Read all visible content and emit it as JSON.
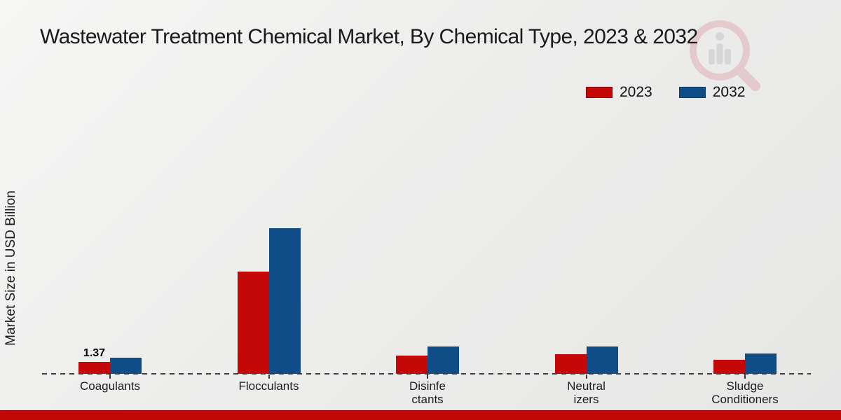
{
  "title": "Wastewater Treatment Chemical Market, By Chemical Type, 2023 & 2032",
  "ylabel": "Market Size in USD Billion",
  "legend": {
    "position": "top-right",
    "items": [
      {
        "label": "2023",
        "color": "#c40808"
      },
      {
        "label": "2032",
        "color": "#0f4c88"
      }
    ]
  },
  "colors": {
    "series_2023": "#c40808",
    "series_2032": "#0f4c88",
    "footer_accent": "#c40709",
    "dashed_zero_line": "#3c3c3c",
    "background": "#ededec",
    "watermark_ring": "#dfaab0",
    "watermark_bars": "#bfc3c8"
  },
  "chart_data": {
    "type": "bar",
    "title": "Wastewater Treatment Chemical Market, By Chemical Type, 2023 & 2032",
    "xlabel": "",
    "ylabel": "Market Size in USD Billion",
    "categories": [
      "Coagulants",
      "Flocculants",
      "Disinfectants",
      "Neutralizers",
      "Sludge Conditioners"
    ],
    "category_display": [
      [
        "Coagulants"
      ],
      [
        "Flocculants"
      ],
      [
        "Disinfe",
        "ctants"
      ],
      [
        "Neutral",
        "izers"
      ],
      [
        "Sludge",
        "Conditioners"
      ]
    ],
    "series": [
      {
        "name": "2023",
        "color": "#c40808",
        "values": [
          1.37,
          11.7,
          2.1,
          2.2,
          1.6
        ]
      },
      {
        "name": "2032",
        "color": "#0f4c88",
        "values": [
          1.85,
          16.6,
          3.1,
          3.15,
          2.3
        ]
      }
    ],
    "data_labels": [
      {
        "category": "Coagulants",
        "series": "2023",
        "text": "1.37"
      }
    ],
    "ylim": [
      0,
      18
    ],
    "grid": false,
    "zero_line": "dashed",
    "legend_position": "top-right",
    "axis_ticks_visible": false
  }
}
